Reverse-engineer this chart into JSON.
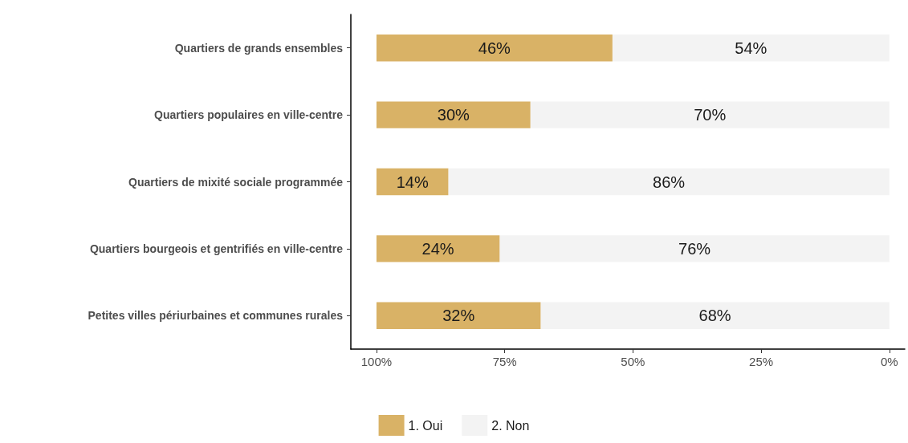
{
  "chart_data": {
    "type": "bar",
    "orientation": "horizontal",
    "stacked": true,
    "categories": [
      "Quartiers de grands ensembles",
      "Quartiers populaires en ville-centre",
      "Quartiers de mixité sociale programmée",
      "Quartiers bourgeois et gentrifiés en ville-centre",
      "Petites villes périurbaines et communes rurales"
    ],
    "series": [
      {
        "name": "2. Non",
        "color": "#f3f3f3",
        "values": [
          54,
          70,
          86,
          76,
          68
        ],
        "value_labels": [
          "54%",
          "70%",
          "86%",
          "76%",
          "68%"
        ]
      },
      {
        "name": "1. Oui",
        "color": "#d9b266",
        "values": [
          46,
          30,
          14,
          24,
          32
        ],
        "value_labels": [
          "46%",
          "30%",
          "14%",
          "24%",
          "32%"
        ]
      }
    ],
    "xlim": [
      105,
      -3
    ],
    "xticks": [
      {
        "value": 100,
        "label": "100%"
      },
      {
        "value": 75,
        "label": "75%"
      },
      {
        "value": 50,
        "label": "50%"
      },
      {
        "value": 25,
        "label": "25%"
      },
      {
        "value": 0,
        "label": "0%"
      }
    ],
    "grid": false,
    "legend": "bottom"
  }
}
